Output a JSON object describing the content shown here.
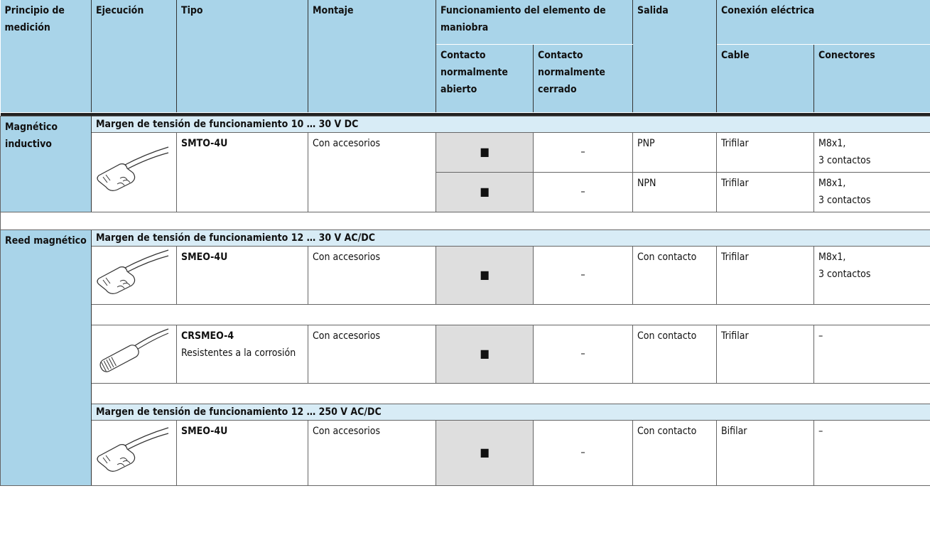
{
  "header": {
    "principio": "Principio de medición",
    "ejecucion": "Ejecución",
    "tipo": "Tipo",
    "montaje": "Montaje",
    "funcionamiento": "Funcionamiento del elemento de maniobra",
    "contacto_na": "Contacto normalmente abierto",
    "contacto_nc": "Contacto normalmente cerrado",
    "salida": "Salida",
    "conexion": "Conexión eléctrica",
    "cable": "Cable",
    "conectores": "Conectores"
  },
  "sections": [
    {
      "principio": "Magnético inductivo",
      "groups": [
        {
          "voltage": "Margen de tensión de funcionamiento 10 … 30 V DC",
          "products": [
            {
              "tipo": "SMTO-4U",
              "montaje": "Con accesorios",
              "variants": [
                {
                  "na": "■",
                  "nc": "–",
                  "salida": "PNP",
                  "cable": "Trifilar",
                  "conectores": "M8x1,\n3 contactos"
                },
                {
                  "na": "■",
                  "nc": "–",
                  "salida": "NPN",
                  "cable": "Trifilar",
                  "conectores": "M8x1,\n3 contactos"
                }
              ]
            }
          ]
        }
      ]
    },
    {
      "principio": "Reed magnético",
      "groups": [
        {
          "voltage": "Margen de tensión de funcionamiento 12 … 30 V AC/DC",
          "products": [
            {
              "tipo": "SMEO-4U",
              "montaje": "Con accesorios",
              "variants": [
                {
                  "na": "■",
                  "nc": "–",
                  "salida": "Con contacto",
                  "cable": "Trifilar",
                  "conectores": "M8x1,\n3 contactos"
                }
              ]
            },
            {
              "tipo": "CRSMEO-4",
              "note": "Resistentes a la corrosión",
              "montaje": "Con accesorios",
              "variants": [
                {
                  "na": "■",
                  "nc": "–",
                  "salida": "Con contacto",
                  "cable": "Trifilar",
                  "conectores": "–"
                }
              ]
            }
          ]
        },
        {
          "voltage": "Margen de tensión de funcionamiento 12 … 250 V AC/DC",
          "products": [
            {
              "tipo": "SMEO-4U",
              "montaje": "Con accesorios",
              "variants": [
                {
                  "na": "■",
                  "nc": "–",
                  "salida": "Con contacto",
                  "cable": "Bifilar",
                  "conectores": "–"
                }
              ]
            }
          ]
        }
      ]
    }
  ]
}
